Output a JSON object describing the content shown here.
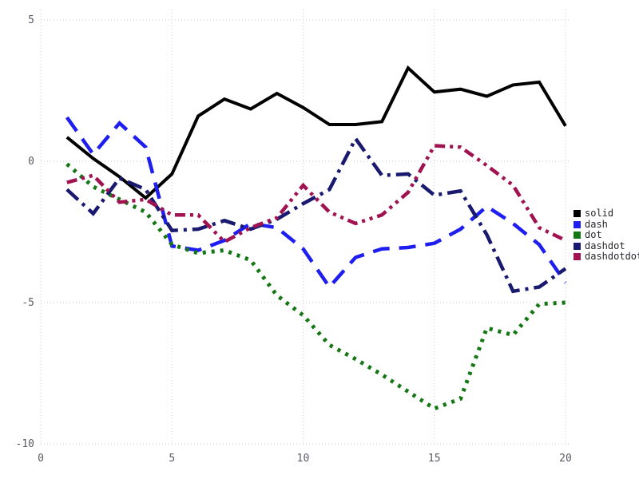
{
  "chart_data": {
    "type": "line",
    "title": "",
    "xlabel": "",
    "ylabel": "",
    "grid": true,
    "legend_position": "right-outside",
    "x_ticks": [
      0,
      5,
      10,
      15,
      20
    ],
    "y_ticks": [
      5,
      0,
      -5,
      -10
    ],
    "xlim": [
      0,
      21
    ],
    "ylim": [
      -10.5,
      5.5
    ],
    "x": [
      1,
      2,
      3,
      4,
      5,
      6,
      7,
      8,
      9,
      10,
      11,
      12,
      13,
      14,
      15,
      16,
      17,
      18,
      19,
      20
    ],
    "series": [
      {
        "name": "solid",
        "linestyle": "solid",
        "color": "#000000",
        "values": [
          0.85,
          0.1,
          -0.55,
          -1.3,
          -0.45,
          1.6,
          2.2,
          1.85,
          2.4,
          1.9,
          1.3,
          1.3,
          1.4,
          3.3,
          2.45,
          2.55,
          2.3,
          2.7,
          2.8,
          1.25
        ]
      },
      {
        "name": "dash",
        "linestyle": "dash",
        "color": "#1e1ef0",
        "values": [
          1.55,
          0.25,
          1.35,
          0.5,
          -3.0,
          -3.15,
          -2.8,
          -2.2,
          -2.35,
          -3.1,
          -4.45,
          -3.4,
          -3.1,
          -3.05,
          -2.9,
          -2.4,
          -1.6,
          -2.2,
          -2.95,
          -4.3
        ]
      },
      {
        "name": "dot",
        "linestyle": "dot",
        "color": "#147714",
        "values": [
          -0.1,
          -0.9,
          -1.35,
          -1.8,
          -2.95,
          -3.25,
          -3.15,
          -3.5,
          -4.75,
          -5.45,
          -6.5,
          -7.0,
          -7.55,
          -8.15,
          -8.75,
          -8.4,
          -5.9,
          -6.15,
          -5.05,
          -5.0
        ]
      },
      {
        "name": "dashdot",
        "linestyle": "dashdot",
        "color": "#191970",
        "values": [
          -1.0,
          -1.85,
          -0.6,
          -1.0,
          -2.45,
          -2.4,
          -2.1,
          -2.4,
          -2.05,
          -1.5,
          -1.0,
          0.8,
          -0.5,
          -0.45,
          -1.2,
          -1.05,
          -2.6,
          -4.6,
          -4.45,
          -3.8
        ]
      },
      {
        "name": "dashdotdot",
        "linestyle": "dashdotdot",
        "color": "#a01350",
        "values": [
          -0.75,
          -0.5,
          -1.45,
          -1.35,
          -1.9,
          -1.9,
          -2.85,
          -2.35,
          -2.0,
          -0.85,
          -1.8,
          -2.2,
          -1.9,
          -1.1,
          0.55,
          0.5,
          -0.15,
          -0.85,
          -2.35,
          -2.8
        ]
      }
    ]
  }
}
